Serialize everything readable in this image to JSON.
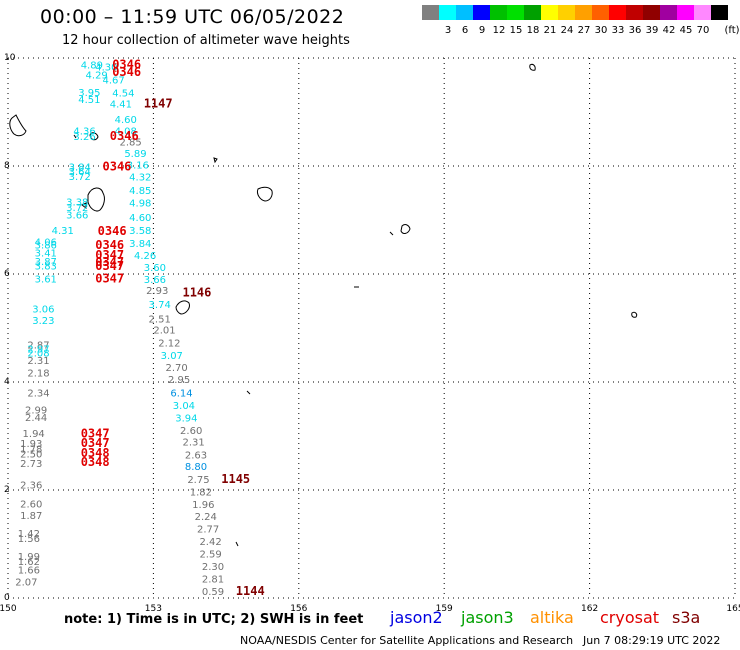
{
  "title": "00:00 – 11:59 UTC 06/05/2022",
  "subtitle": "12 hour collection of altimeter wave heights",
  "colorbar": {
    "unit": "(ft)",
    "bins": [
      {
        "label": "",
        "color": "#808080"
      },
      {
        "label": "3",
        "color": "#00ffff"
      },
      {
        "label": "6",
        "color": "#00bfff"
      },
      {
        "label": "9",
        "color": "#0000ff"
      },
      {
        "label": "12",
        "color": "#00c000"
      },
      {
        "label": "15",
        "color": "#00e000"
      },
      {
        "label": "18",
        "color": "#00a000"
      },
      {
        "label": "21",
        "color": "#ffff00"
      },
      {
        "label": "24",
        "color": "#ffd000"
      },
      {
        "label": "27",
        "color": "#ffa000"
      },
      {
        "label": "30",
        "color": "#ff6000"
      },
      {
        "label": "33",
        "color": "#ff0000"
      },
      {
        "label": "36",
        "color": "#c00000"
      },
      {
        "label": "39",
        "color": "#900000"
      },
      {
        "label": "42",
        "color": "#a000a0"
      },
      {
        "label": "45",
        "color": "#ff00ff"
      },
      {
        "label": "70",
        "color": "#ff88ff"
      },
      {
        "label": "",
        "color": "#000000"
      }
    ]
  },
  "map": {
    "lon_ticks": [
      "150",
      "153",
      "156",
      "159",
      "162",
      "165"
    ],
    "lat_ticks": [
      "0",
      "2",
      "4",
      "6",
      "8",
      "10"
    ],
    "colors": {
      "low": "#707070",
      "cyan": "#00d8e8",
      "blue": "#0090e0",
      "time_red": "#e00000",
      "time_dark": "#800000"
    },
    "obs": [
      {
        "t": "4.89",
        "c": "cyan",
        "lon": 151.5,
        "lat": 9.81
      },
      {
        "t": "4.30",
        "c": "cyan",
        "lon": 151.8,
        "lat": 9.77
      },
      {
        "t": "4.29",
        "c": "cyan",
        "lon": 151.6,
        "lat": 9.62
      },
      {
        "t": "4.67",
        "c": "cyan",
        "lon": 151.95,
        "lat": 9.53
      },
      {
        "t": "3.95",
        "c": "cyan",
        "lon": 151.45,
        "lat": 9.3
      },
      {
        "t": "4.54",
        "c": "cyan",
        "lon": 152.15,
        "lat": 9.29
      },
      {
        "t": "4.51",
        "c": "cyan",
        "lon": 151.45,
        "lat": 9.17
      },
      {
        "t": "4.41",
        "c": "cyan",
        "lon": 152.1,
        "lat": 9.08
      },
      {
        "t": "4.60",
        "c": "cyan",
        "lon": 152.2,
        "lat": 8.8
      },
      {
        "t": "4.36",
        "c": "cyan",
        "lon": 151.35,
        "lat": 8.58
      },
      {
        "t": "4.08",
        "c": "cyan",
        "lon": 152.2,
        "lat": 8.58
      },
      {
        "t": "3.26",
        "c": "cyan",
        "lon": 151.35,
        "lat": 8.48
      },
      {
        "t": "2.85",
        "c": "low",
        "lon": 152.3,
        "lat": 8.38
      },
      {
        "t": "5.89",
        "c": "cyan",
        "lon": 152.4,
        "lat": 8.17
      },
      {
        "t": "3.16",
        "c": "cyan",
        "lon": 152.45,
        "lat": 7.95
      },
      {
        "t": "3.84",
        "c": "cyan",
        "lon": 151.25,
        "lat": 7.92
      },
      {
        "t": "3.64",
        "c": "cyan",
        "lon": 151.25,
        "lat": 7.83
      },
      {
        "t": "3.72",
        "c": "cyan",
        "lon": 151.25,
        "lat": 7.74
      },
      {
        "t": "4.32",
        "c": "cyan",
        "lon": 152.5,
        "lat": 7.73
      },
      {
        "t": "4.85",
        "c": "cyan",
        "lon": 152.5,
        "lat": 7.48
      },
      {
        "t": "3.38",
        "c": "cyan",
        "lon": 151.2,
        "lat": 7.27
      },
      {
        "t": "3.72",
        "c": "cyan",
        "lon": 151.2,
        "lat": 7.17
      },
      {
        "t": "4.98",
        "c": "cyan",
        "lon": 152.5,
        "lat": 7.25
      },
      {
        "t": "3.66",
        "c": "cyan",
        "lon": 151.2,
        "lat": 7.03
      },
      {
        "t": "4.60",
        "c": "cyan",
        "lon": 152.5,
        "lat": 6.98
      },
      {
        "t": "4.31",
        "c": "cyan",
        "lon": 150.9,
        "lat": 6.74
      },
      {
        "t": "3.58",
        "c": "cyan",
        "lon": 152.5,
        "lat": 6.74
      },
      {
        "t": "4.06",
        "c": "cyan",
        "lon": 150.55,
        "lat": 6.53
      },
      {
        "t": "3.86",
        "c": "cyan",
        "lon": 150.55,
        "lat": 6.47
      },
      {
        "t": "3.84",
        "c": "cyan",
        "lon": 152.5,
        "lat": 6.5
      },
      {
        "t": "3.41",
        "c": "cyan",
        "lon": 150.55,
        "lat": 6.32
      },
      {
        "t": "4.26",
        "c": "cyan",
        "lon": 152.6,
        "lat": 6.28
      },
      {
        "t": "3.87",
        "c": "cyan",
        "lon": 150.55,
        "lat": 6.17
      },
      {
        "t": "3.83",
        "c": "cyan",
        "lon": 150.55,
        "lat": 6.08
      },
      {
        "t": "3.60",
        "c": "cyan",
        "lon": 152.8,
        "lat": 6.06
      },
      {
        "t": "3.61",
        "c": "cyan",
        "lon": 150.55,
        "lat": 5.84
      },
      {
        "t": "3.66",
        "c": "cyan",
        "lon": 152.8,
        "lat": 5.83
      },
      {
        "t": "2.93",
        "c": "low",
        "lon": 152.85,
        "lat": 5.63
      },
      {
        "t": "3.06",
        "c": "cyan",
        "lon": 150.5,
        "lat": 5.29
      },
      {
        "t": "3.74",
        "c": "cyan",
        "lon": 152.9,
        "lat": 5.37
      },
      {
        "t": "3.23",
        "c": "cyan",
        "lon": 150.5,
        "lat": 5.07
      },
      {
        "t": "2.51",
        "c": "low",
        "lon": 152.9,
        "lat": 5.1
      },
      {
        "t": "2.01",
        "c": "low",
        "lon": 153.0,
        "lat": 4.9
      },
      {
        "t": "2.12",
        "c": "low",
        "lon": 153.1,
        "lat": 4.66
      },
      {
        "t": "2.87",
        "c": "low",
        "lon": 150.4,
        "lat": 4.62
      },
      {
        "t": "2.97",
        "c": "cyan",
        "lon": 150.4,
        "lat": 4.55
      },
      {
        "t": "2.08",
        "c": "cyan",
        "lon": 150.4,
        "lat": 4.47
      },
      {
        "t": "3.07",
        "c": "cyan",
        "lon": 153.15,
        "lat": 4.43
      },
      {
        "t": "2.31",
        "c": "low",
        "lon": 150.4,
        "lat": 4.33
      },
      {
        "t": "2.70",
        "c": "low",
        "lon": 153.25,
        "lat": 4.2
      },
      {
        "t": "2.18",
        "c": "low",
        "lon": 150.4,
        "lat": 4.1
      },
      {
        "t": "2.95",
        "c": "low",
        "lon": 153.3,
        "lat": 3.98
      },
      {
        "t": "2.34",
        "c": "low",
        "lon": 150.4,
        "lat": 3.73
      },
      {
        "t": "6.14",
        "c": "blue",
        "lon": 153.35,
        "lat": 3.73
      },
      {
        "t": "3.04",
        "c": "cyan",
        "lon": 153.4,
        "lat": 3.5
      },
      {
        "t": "2.99",
        "c": "low",
        "lon": 150.35,
        "lat": 3.42
      },
      {
        "t": "2.44",
        "c": "low",
        "lon": 150.35,
        "lat": 3.28
      },
      {
        "t": "3.94",
        "c": "cyan",
        "lon": 153.45,
        "lat": 3.27
      },
      {
        "t": "2.60",
        "c": "low",
        "lon": 153.55,
        "lat": 3.04
      },
      {
        "t": "1.94",
        "c": "low",
        "lon": 150.3,
        "lat": 2.98
      },
      {
        "t": "2.31",
        "c": "low",
        "lon": 153.6,
        "lat": 2.82
      },
      {
        "t": "1.93",
        "c": "low",
        "lon": 150.25,
        "lat": 2.8
      },
      {
        "t": "1.78",
        "c": "low",
        "lon": 150.25,
        "lat": 2.69
      },
      {
        "t": "2.50",
        "c": "low",
        "lon": 150.25,
        "lat": 2.6
      },
      {
        "t": "2.63",
        "c": "low",
        "lon": 153.65,
        "lat": 2.58
      },
      {
        "t": "2.73",
        "c": "low",
        "lon": 150.25,
        "lat": 2.43
      },
      {
        "t": "8.80",
        "c": "blue",
        "lon": 153.65,
        "lat": 2.37
      },
      {
        "t": "2.36",
        "c": "low",
        "lon": 150.25,
        "lat": 2.03
      },
      {
        "t": "2.75",
        "c": "low",
        "lon": 153.7,
        "lat": 2.13
      },
      {
        "t": "1.82",
        "c": "low",
        "lon": 153.75,
        "lat": 1.9
      },
      {
        "t": "2.60",
        "c": "low",
        "lon": 150.25,
        "lat": 1.68
      },
      {
        "t": "1.96",
        "c": "low",
        "lon": 153.8,
        "lat": 1.67
      },
      {
        "t": "1.87",
        "c": "low",
        "lon": 150.25,
        "lat": 1.46
      },
      {
        "t": "2.24",
        "c": "low",
        "lon": 153.85,
        "lat": 1.44
      },
      {
        "t": "1.42",
        "c": "low",
        "lon": 150.2,
        "lat": 1.13
      },
      {
        "t": "2.77",
        "c": "low",
        "lon": 153.9,
        "lat": 1.21
      },
      {
        "t": "1.56",
        "c": "low",
        "lon": 150.2,
        "lat": 1.04
      },
      {
        "t": "2.42",
        "c": "low",
        "lon": 153.95,
        "lat": 0.98
      },
      {
        "t": "2.59",
        "c": "low",
        "lon": 153.95,
        "lat": 0.75
      },
      {
        "t": "1.99",
        "c": "low",
        "lon": 150.2,
        "lat": 0.7
      },
      {
        "t": "1.62",
        "c": "low",
        "lon": 150.2,
        "lat": 0.61
      },
      {
        "t": "2.30",
        "c": "low",
        "lon": 154.0,
        "lat": 0.52
      },
      {
        "t": "1.66",
        "c": "low",
        "lon": 150.2,
        "lat": 0.45
      },
      {
        "t": "2.81",
        "c": "low",
        "lon": 154.0,
        "lat": 0.29
      },
      {
        "t": "2.07",
        "c": "low",
        "lon": 150.15,
        "lat": 0.23
      },
      {
        "t": "0.59",
        "c": "low",
        "lon": 154.0,
        "lat": 0.06
      }
    ],
    "times": [
      {
        "t": "0346",
        "c": "time_red",
        "lon": 152.15,
        "lat": 9.81
      },
      {
        "t": "0346",
        "c": "time_red",
        "lon": 152.15,
        "lat": 9.67
      },
      {
        "t": "1147",
        "c": "time_dark",
        "lon": 152.8,
        "lat": 9.08
      },
      {
        "t": "0346",
        "c": "time_red",
        "lon": 152.1,
        "lat": 8.48
      },
      {
        "t": "0346",
        "c": "time_red",
        "lon": 151.95,
        "lat": 7.92
      },
      {
        "t": "0346",
        "c": "time_red",
        "lon": 151.85,
        "lat": 6.72
      },
      {
        "t": "0346",
        "c": "time_red",
        "lon": 151.8,
        "lat": 6.46
      },
      {
        "t": "0347",
        "c": "time_red",
        "lon": 151.8,
        "lat": 6.28
      },
      {
        "t": "0347",
        "c": "time_red",
        "lon": 151.8,
        "lat": 6.15
      },
      {
        "t": "0347",
        "c": "time_red",
        "lon": 151.8,
        "lat": 6.07
      },
      {
        "t": "0347",
        "c": "time_red",
        "lon": 151.8,
        "lat": 5.84
      },
      {
        "t": "1146",
        "c": "time_dark",
        "lon": 153.6,
        "lat": 5.58
      },
      {
        "t": "0347",
        "c": "time_red",
        "lon": 151.5,
        "lat": 2.97
      },
      {
        "t": "0347",
        "c": "time_red",
        "lon": 151.5,
        "lat": 2.8
      },
      {
        "t": "0348",
        "c": "time_red",
        "lon": 151.5,
        "lat": 2.61
      },
      {
        "t": "0348",
        "c": "time_red",
        "lon": 151.5,
        "lat": 2.44
      },
      {
        "t": "1145",
        "c": "time_dark",
        "lon": 154.4,
        "lat": 2.13
      },
      {
        "t": "1144",
        "c": "time_dark",
        "lon": 154.7,
        "lat": 0.06
      }
    ]
  },
  "note": "note:  1) Time is in UTC;  2) SWH is in feet",
  "legend": [
    {
      "label": "jason2",
      "color": "#0000e0"
    },
    {
      "label": "jason3",
      "color": "#00a000"
    },
    {
      "label": "altika",
      "color": "#ff9000"
    },
    {
      "label": "cryosat",
      "color": "#e00000"
    },
    {
      "label": "s3a",
      "color": "#800000"
    }
  ],
  "credit": "NOAA/NESDIS Center for Satellite Applications and Research",
  "generated": "Jun  7 08:29:19 UTC 2022"
}
